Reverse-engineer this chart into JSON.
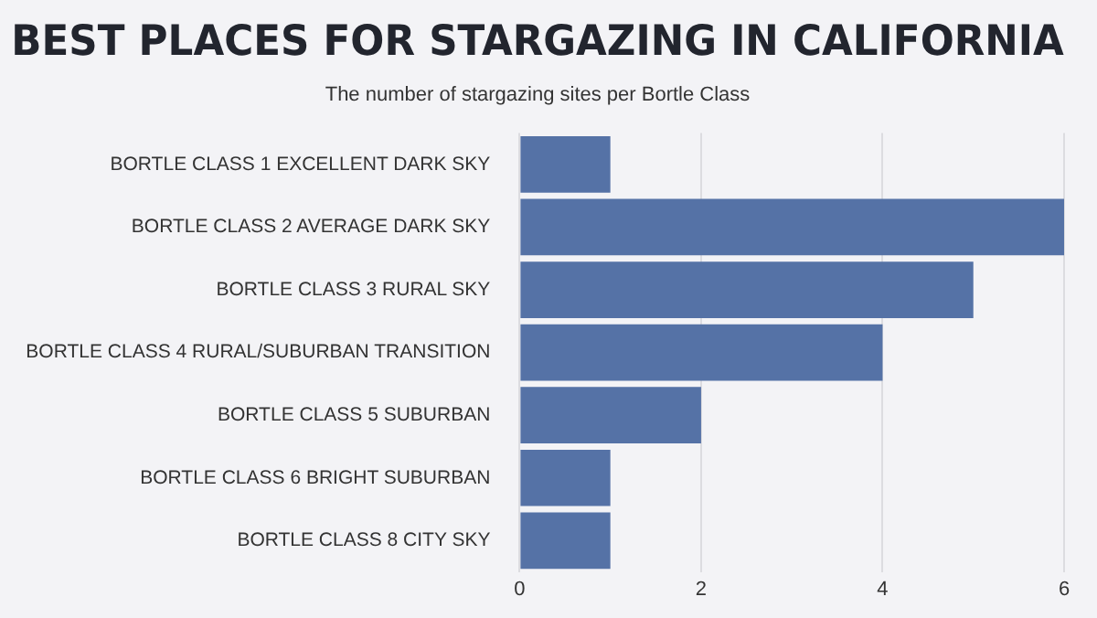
{
  "chart_data": {
    "type": "bar",
    "title": "BEST PLACES FOR STARGAZING IN CALIFORNIA",
    "subtitle": "The number of stargazing sites per Bortle Class",
    "orientation": "horizontal",
    "categories": [
      "BORTLE CLASS 1 EXCELLENT DARK SKY",
      "BORTLE CLASS 2 AVERAGE DARK SKY",
      "BORTLE CLASS 3 RURAL SKY",
      "BORTLE CLASS 4 RURAL/SUBURBAN TRANSITION",
      "BORTLE CLASS 5 SUBURBAN",
      "BORTLE CLASS 6 BRIGHT SUBURBAN",
      "BORTLE CLASS 8 CITY SKY"
    ],
    "values": [
      1,
      6,
      5,
      4,
      2,
      1,
      1
    ],
    "color": "#5572a6",
    "xlim": [
      0,
      6
    ],
    "xticks": [
      0,
      2,
      4,
      6
    ],
    "grid": "x",
    "legend": false
  }
}
